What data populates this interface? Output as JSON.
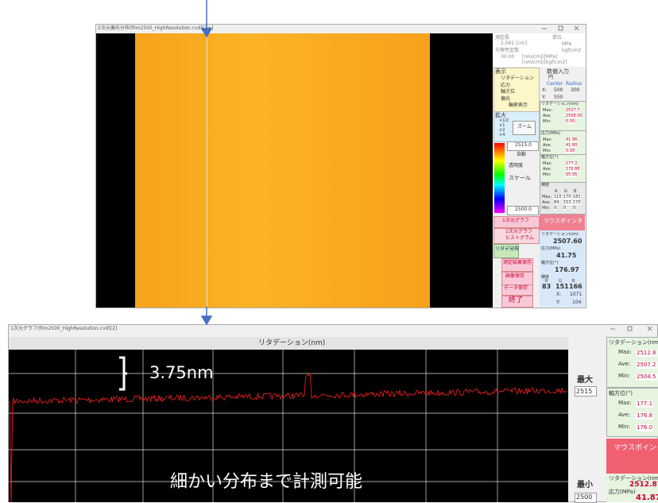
{
  "top": {
    "title": "2次元偏光分布(film2500_HighResolution.cvd)[2+]",
    "measure_label": "測定長",
    "measure_value": "2.062 [cm]",
    "coef_label": "光弾性定数",
    "coef_value": "30.00",
    "coef_unit1": "[nm/cm]/[MPa]",
    "coef_unit2": "[nm/cm]/[kgf/cm2]",
    "unit_label": "単位",
    "unit1": "MPa",
    "unit2": "kgf/cm2",
    "display_label": "表示",
    "display_options": [
      "リタデーション",
      "応力",
      "軸方位",
      "偏光",
      "輪郭表示"
    ],
    "zoom_label": "拡大",
    "zoom_options": [
      "×1/2",
      "×1",
      "×2",
      "×4"
    ],
    "zoom_button": "ズーム",
    "scale_max": "2515.0",
    "auto": "自動",
    "transparency": "透明度",
    "scale_label": "スケール",
    "scale_min": "2500.0",
    "numeric_input": "数値入力",
    "circle": "円",
    "center": "Center",
    "radius": "Radius",
    "x_label": "X:",
    "x_value": "500",
    "radius_value": "300",
    "y_label": "Y:",
    "y_value": "550",
    "stats": [
      {
        "title": "リタデーション(nm)",
        "rows": [
          {
            "label": "Max:",
            "value": "2517.7"
          },
          {
            "label": "Ave:",
            "value": "2508.00"
          },
          {
            "label": "Min:",
            "value": "0.00"
          }
        ]
      },
      {
        "title": "応力(MPa)",
        "rows": [
          {
            "label": "Max:",
            "value": "41.96"
          },
          {
            "label": "Ave:",
            "value": "41.80"
          },
          {
            "label": "Min:",
            "value": "0.00"
          }
        ]
      },
      {
        "title": "軸方位(°)",
        "rows": [
          {
            "label": "Max:",
            "value": "177.2"
          },
          {
            "label": "Ave:",
            "value": "176.86"
          },
          {
            "label": "Min:",
            "value": "95.95"
          }
        ]
      }
    ],
    "brightness": {
      "title": "輝度",
      "headers": [
        "R",
        "G",
        "B"
      ],
      "rows": [
        {
          "label": "Max:",
          "values": [
            "110",
            "170",
            "181"
          ]
        },
        {
          "label": "Ave:",
          "values": [
            "84",
            "152",
            "170"
          ]
        },
        {
          "label": "Min:",
          "values": [
            "0",
            "0",
            "0"
          ]
        }
      ]
    },
    "buttons": [
      "1次元グラフ",
      "1次元グラフ",
      "ヒストグラム",
      "リタデ分布",
      "測定結果保存",
      "画像保存",
      "データ保存",
      "終了"
    ],
    "mouse": {
      "title": "マウスポインタ",
      "ret_label": "リタデーション(nm)",
      "ret_value": "2507.60",
      "stress_label": "応力(MPa)",
      "stress_value": "41.75",
      "axis_label": "軸方位(°)",
      "axis_value": "176.97",
      "bright_label": "輝度",
      "headers": [
        "R",
        "G",
        "B"
      ],
      "values": [
        "83",
        "151",
        "166"
      ],
      "x_label": "X:",
      "x_value": "1071",
      "y_label": "Y:",
      "y_value": "104"
    }
  },
  "bottom": {
    "title": "1次元グラフ(film2500_HighResolution.cvd)[2]",
    "graph_title": "リタデーション(nm)",
    "annotation_step": "3.75nm",
    "annotation_note": "細かい分布まで計測可能",
    "max_label": "最大",
    "max_value": "2515",
    "min_label": "最小",
    "min_value": "2500",
    "stats": [
      {
        "title": "リタデーション(nm)",
        "rows": [
          {
            "label": "Max:",
            "value": "2512.8"
          },
          {
            "label": "Ave:",
            "value": "2507.2"
          },
          {
            "label": "Min:",
            "value": "2504.5"
          }
        ]
      },
      {
        "title": "軸方位(°)",
        "rows": [
          {
            "label": "Max:",
            "value": "177.1"
          },
          {
            "label": "Ave:",
            "value": "176.8"
          },
          {
            "label": "Min:",
            "value": "176.0"
          }
        ]
      }
    ],
    "mouse": {
      "title": "マウスポインタ",
      "ret_label": "リタデーション(nm)",
      "ret_value": "2512.87",
      "stress_label": "応力(MPa)",
      "stress_value": "41.87"
    }
  }
}
